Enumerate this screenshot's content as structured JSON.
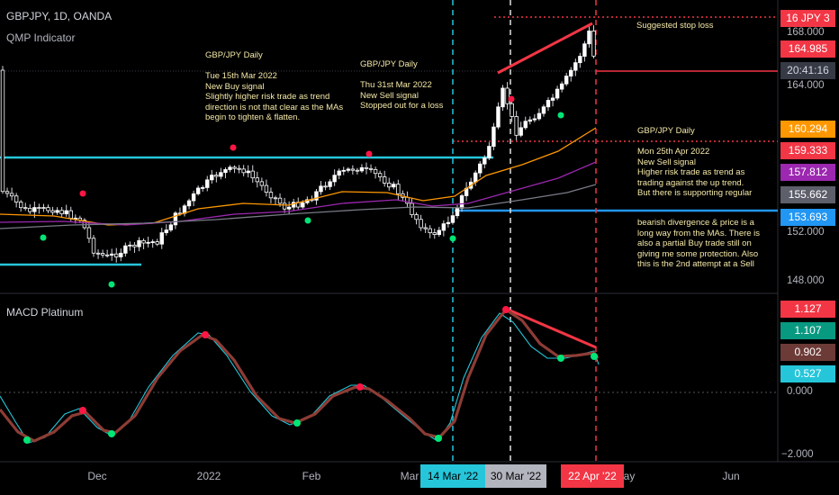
{
  "header": {
    "symbol": "GBPJPY, 1D, OANDA",
    "indicator": "QMP Indicator",
    "macd_title": "MACD Platinum"
  },
  "annotations": {
    "a1": "GBP/JPY Daily\n\nTue 15th Mar 2022\nNew Buy signal\nSlightly higher risk trade as trend\ndirection is not that clear as the MAs\nbegin to tighten & flatten.",
    "a2": "GBP/JPY Daily\n\nThu 31st Mar 2022\nNew Sell signal\nStopped out for a loss",
    "a3": "Suggested stop loss",
    "a4": "GBP/JPY Daily\n\nMon 25th Apr 2022\nNew Sell signal\nHigher risk trade as trend as\ntrading against the up trend.\nBut there is supporting regular",
    "a5": "bearish divergence & price is a\nlong way from the MAs. There is\nalso a partial Buy trade still on\ngiving me some protection. Also\nthis is the 2nd attempt at a Sell"
  },
  "price_tags": [
    {
      "text": "167.XXX",
      "label": "16 JPY 3",
      "color": "#f23645"
    },
    {
      "text": "164.985",
      "color": "#f23645"
    },
    {
      "text": "20:41:16",
      "color": "#363a45"
    },
    {
      "text": "160.294",
      "color": "#ff9800"
    },
    {
      "text": "159.333",
      "color": "#f23645"
    },
    {
      "text": "157.812",
      "color": "#9c27b0"
    },
    {
      "text": "155.662",
      "color": "#5d606b"
    },
    {
      "text": "153.693",
      "color": "#2196f3"
    },
    {
      "text": "1.127",
      "color": "#f23645"
    },
    {
      "text": "1.107",
      "color": "#089981"
    },
    {
      "text": "0.902",
      "color": "#6d3b37"
    },
    {
      "text": "0.527",
      "color": "#26c6da"
    }
  ],
  "price_axis_labels": [
    "168.000",
    "164.000",
    "152.000",
    "148.000"
  ],
  "macd_axis_labels": [
    "0.000",
    "−2.000"
  ],
  "x_axis_labels": [
    "Dec",
    "2022",
    "Feb",
    "Mar",
    "ay",
    "Jun"
  ],
  "x_tags": [
    {
      "text": "14 Mar '22",
      "color": "#26c6da",
      "fg": "#000"
    },
    {
      "text": "30 Mar '22",
      "color": "#b2b5be",
      "fg": "#000"
    },
    {
      "text": "22 Apr '22",
      "color": "#f23645",
      "fg": "#fff"
    }
  ],
  "chart_data": {
    "type": "candlestick",
    "title": "GBPJPY, 1D, OANDA",
    "price_range": [
      146.0,
      169.5
    ],
    "macd_range": [
      -2.5,
      2.3
    ],
    "levels": {
      "suggested_stop": 167.9,
      "current": 164.985,
      "sell_entry_stop": 159.333,
      "support": 153.693,
      "range_high_cyan": 158.3,
      "range_low_cyan": 149.3
    },
    "moving_averages": [
      {
        "color": "#ff9800",
        "last": 160.294
      },
      {
        "color": "#9c27b0",
        "last": 157.812
      },
      {
        "color": "#787b86",
        "last": 155.662
      }
    ],
    "macd_last": {
      "fast": 0.527,
      "signal": 0.902
    }
  },
  "colors": {
    "bg": "#000000",
    "candle": "#ffffff",
    "buy_dot": "#00e676",
    "sell_dot": "#ff1744",
    "cyan": "#26c6da",
    "blue": "#2196f3",
    "red": "#f23645"
  }
}
